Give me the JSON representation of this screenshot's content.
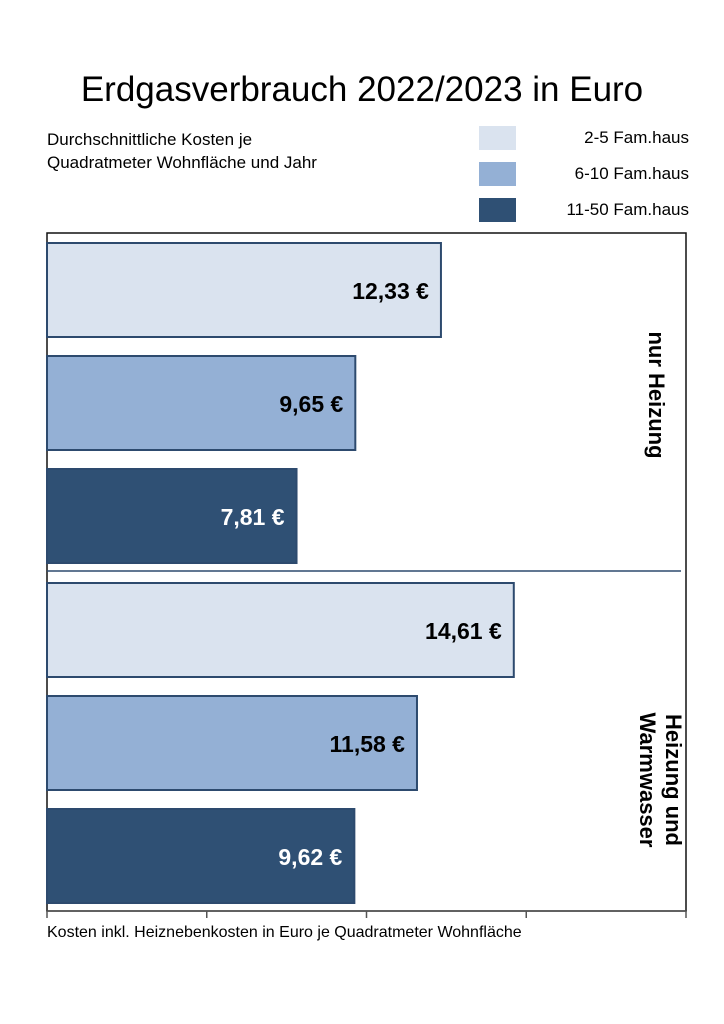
{
  "chart_data": {
    "type": "bar",
    "orientation": "horizontal",
    "title": "Erdgasverbrauch 2022/2023 in Euro",
    "subtitle": "Durchschnittliche Kosten je\nQuadratmeter Wohnfläche und Jahr",
    "xlabel": "Kosten inkl. Heiznebenkosten in Euro je Quadratmeter Wohnfläche",
    "xlim": [
      0,
      20
    ],
    "x_ticks": [
      0,
      5,
      10,
      15,
      20
    ],
    "tick_labels_shown": false,
    "grid": false,
    "legend_position": "top-right",
    "categories": [
      "nur Heizung",
      "Heizung und Warmwasser"
    ],
    "series": [
      {
        "name": "2-5 Fam.haus",
        "color": "#dae3ef",
        "values": [
          12.33,
          14.61
        ],
        "labels": [
          "12,33 €",
          "14,61 €"
        ],
        "label_color": "#000000"
      },
      {
        "name": "6-10 Fam.haus",
        "color": "#94b0d5",
        "values": [
          9.65,
          11.58
        ],
        "labels": [
          "9,65 €",
          "11,58 €"
        ],
        "label_color": "#000000"
      },
      {
        "name": "11-50 Fam.haus",
        "color": "#2f5074",
        "values": [
          7.81,
          9.62
        ],
        "labels": [
          "7,81 €",
          "9,62 €"
        ],
        "label_color": "#ffffff"
      }
    ],
    "bar_border_color": "#2d4a6e"
  }
}
